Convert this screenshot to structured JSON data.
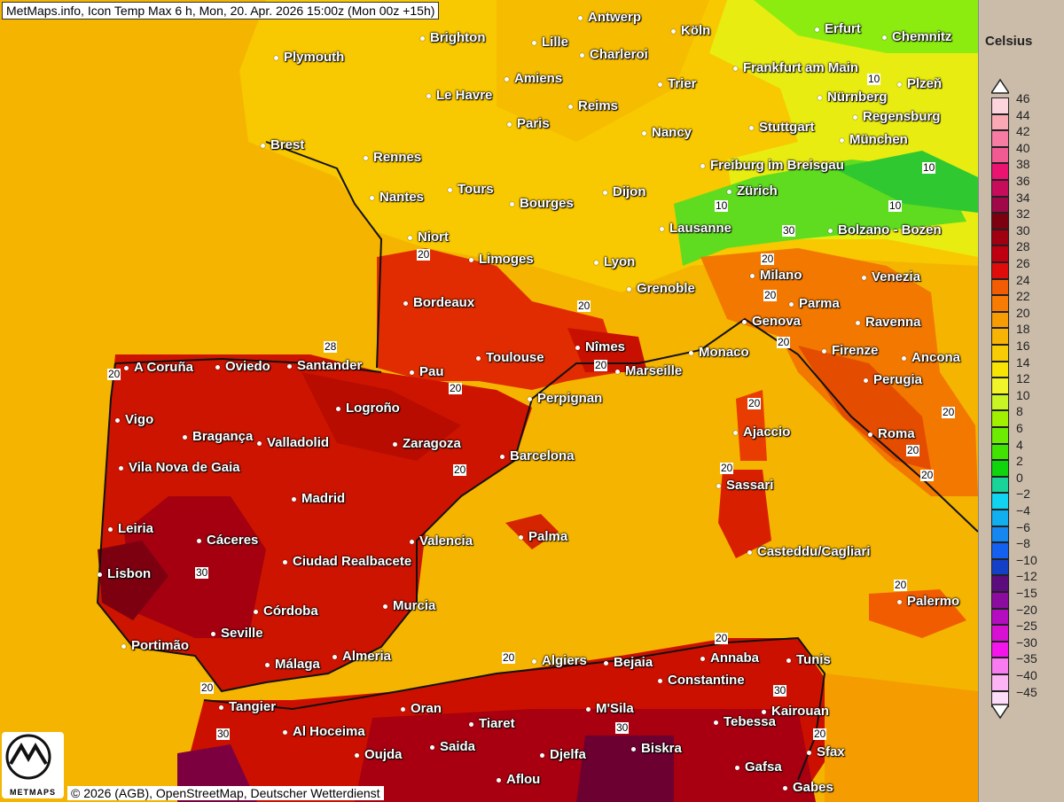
{
  "title": "MetMaps.info, Icon Temp Max 6 h, Mon, 20. Apr. 2026 15:00z (Mon 00z +15h)",
  "copyright": "© 2026 (AGB), OpenStreetMap, Deutscher Wetterdienst",
  "logo_text": "METMAPS",
  "legend": {
    "unit": "Celsius",
    "values": [
      "46",
      "44",
      "42",
      "40",
      "38",
      "36",
      "34",
      "32",
      "30",
      "28",
      "26",
      "24",
      "22",
      "20",
      "18",
      "16",
      "14",
      "12",
      "10",
      "8",
      "6",
      "4",
      "2",
      "0",
      "−2",
      "−4",
      "−6",
      "−8",
      "−10",
      "−12",
      "−15",
      "−20",
      "−25",
      "−30",
      "−35",
      "−40",
      "−45"
    ],
    "colors": [
      "#fcd4dc",
      "#f9a8b4",
      "#f77ca4",
      "#f25a94",
      "#ec1272",
      "#c80c5c",
      "#a00848",
      "#7c0010",
      "#a00010",
      "#c00010",
      "#e00c0c",
      "#f45c04",
      "#f87c04",
      "#f89c04",
      "#f8b404",
      "#f8cc04",
      "#f8e404",
      "#f0f428",
      "#c8f424",
      "#a0f000",
      "#6cec00",
      "#40e400",
      "#10d40c",
      "#18d498",
      "#10d4f0",
      "#10b0f0",
      "#1488f0",
      "#1460f0",
      "#1440c8",
      "#5c0c7c",
      "#8c0ca0",
      "#b40cc0",
      "#d810d4",
      "#f414ec",
      "#f87cf0",
      "#fcb4f4",
      "#fcdcf8"
    ]
  },
  "cities": [
    "Antwerp",
    "Köln",
    "Erfurt",
    "Chemnitz",
    "Brighton",
    "Lille",
    "Charleroi",
    "Plymouth",
    "Frankfurt am Main",
    "Amiens",
    "Trier",
    "Nürnberg",
    "Plzeň",
    "Le Havre",
    "Reims",
    "Regensburg",
    "Paris",
    "Stuttgart",
    "Nancy",
    "Brest",
    "München",
    "Rennes",
    "Freiburg im Breisgau",
    "Tours",
    "Dijon",
    "Zürich",
    "Nantes",
    "Bourges",
    "Lausanne",
    "Bolzano - Bozen",
    "Niort",
    "Limoges",
    "Lyon",
    "Milano",
    "Venezia",
    "Grenoble",
    "Bordeaux",
    "Parma",
    "Genova",
    "Ravenna",
    "Nîmes",
    "Monaco",
    "Firenze",
    "Ancona",
    "Toulouse",
    "Marseille",
    "Pau",
    "A Coruña",
    "Oviedo",
    "Santander",
    "Perugia",
    "Perpignan",
    "Logroño",
    "Vigo",
    "Bragança",
    "Valladolid",
    "Zaragoza",
    "Ajaccio",
    "Roma",
    "Barcelona",
    "Vila Nova de Gaia",
    "Sassari",
    "Madrid",
    "Palma",
    "Leiria",
    "Cáceres",
    "Valencia",
    "Casteddu/Cagliari",
    "Ciudad Realbacete",
    "Lisbon",
    "Palermo",
    "Murcia",
    "Córdoba",
    "Seville",
    "Portimão",
    "Málaga",
    "Almeria",
    "Algiers",
    "Bejaia",
    "Annaba",
    "Tunis",
    "Constantine",
    "Tangier",
    "Oran",
    "M'Sila",
    "Kairouan",
    "Al Hoceima",
    "Tiaret",
    "Tebessa",
    "Saida",
    "Biskra",
    "Sfax",
    "Oujda",
    "Djelfa",
    "Gafsa",
    "Aflou",
    "Gabes"
  ],
  "contour_labels": [
    "20",
    "20",
    "20",
    "20",
    "20",
    "20",
    "20",
    "20",
    "20",
    "20",
    "20",
    "20",
    "20",
    "20",
    "20",
    "20",
    "20",
    "20",
    "20",
    "30",
    "30",
    "30",
    "30",
    "30",
    "10",
    "10",
    "10",
    "10",
    "28"
  ]
}
